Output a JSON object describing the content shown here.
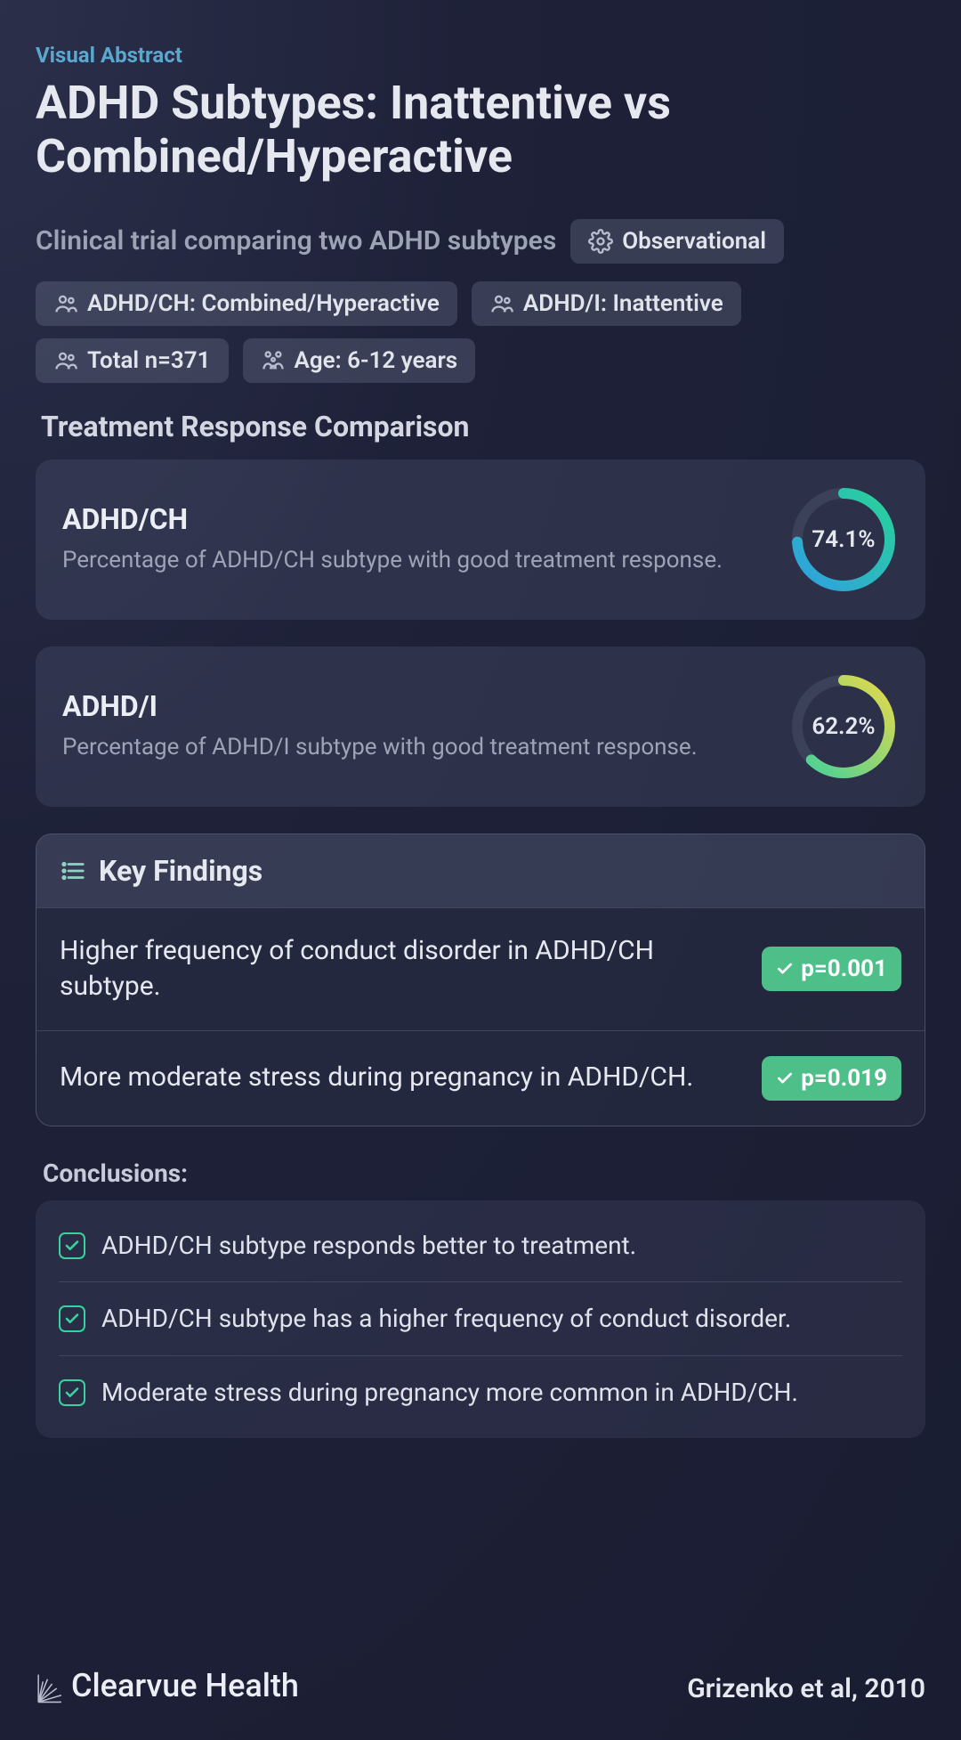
{
  "header": {
    "eyebrow": "Visual Abstract",
    "title": "ADHD Subtypes: Inattentive vs Combined/Hyperactive",
    "subtitle": "Clinical trial comparing two ADHD subtypes",
    "study_type": "Observational"
  },
  "pills": {
    "group_a": "ADHD/CH: Combined/Hyperactive",
    "group_b": "ADHD/I: Inattentive",
    "n": "Total n=371",
    "age": "Age: 6-12 years"
  },
  "comparison": {
    "section_title": "Treatment Response Comparison",
    "cards": [
      {
        "title": "ADHD/CH",
        "desc": "Percentage of ADHD/CH subtype with good treatment response.",
        "value": 74.1,
        "label": "74.1%",
        "track_color": "#3b4158",
        "grad_start": "#2f9fe0",
        "grad_end": "#29d29a"
      },
      {
        "title": "ADHD/I",
        "desc": "Percentage of ADHD/I subtype with good treatment response.",
        "value": 62.2,
        "label": "62.2%",
        "track_color": "#3b4158",
        "grad_start": "#3fd19b",
        "grad_end": "#e7d94a"
      }
    ]
  },
  "findings": {
    "header": "Key Findings",
    "rows": [
      {
        "text": "Higher frequency of conduct disorder in ADHD/CH subtype.",
        "p": "p=0.001"
      },
      {
        "text": "More moderate stress during pregnancy in ADHD/CH.",
        "p": "p=0.019"
      }
    ]
  },
  "conclusions": {
    "title": "Conclusions:",
    "items": [
      "ADHD/CH subtype responds better to treatment.",
      "ADHD/CH subtype has a higher frequency of conduct disorder.",
      "Moderate stress during pregnancy more common in ADHD/CH."
    ]
  },
  "footer": {
    "brand": "Clearvue Health",
    "citation": "Grizenko et al, 2010"
  },
  "style": {
    "badge_bg": "#4fbf89",
    "accent_teal": "#37d2a0",
    "donut_stroke_width": 12,
    "donut_radius": 52,
    "card_bg": "rgba(120,128,160,0.18)"
  }
}
